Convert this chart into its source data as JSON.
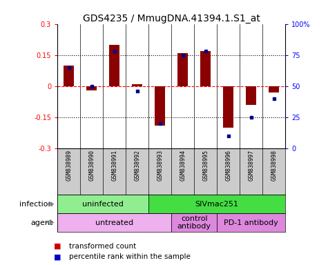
{
  "title": "GDS4235 / MmugDNA.41394.1.S1_at",
  "samples": [
    "GSM838989",
    "GSM838990",
    "GSM838991",
    "GSM838992",
    "GSM838993",
    "GSM838994",
    "GSM838995",
    "GSM838996",
    "GSM838997",
    "GSM838998"
  ],
  "transformed_count": [
    0.1,
    -0.02,
    0.2,
    0.01,
    -0.19,
    0.16,
    0.17,
    -0.2,
    -0.09,
    -0.03
  ],
  "percentile_rank": [
    65,
    50,
    78,
    46,
    20,
    75,
    78,
    10,
    25,
    40
  ],
  "ylim": [
    -0.3,
    0.3
  ],
  "yticks_left": [
    -0.3,
    -0.15,
    0,
    0.15,
    0.3
  ],
  "yticks_right": [
    0,
    25,
    50,
    75,
    100
  ],
  "bar_color": "#8B0000",
  "dot_color": "#00008B",
  "infection_groups": [
    {
      "label": "uninfected",
      "start": 0,
      "end": 4,
      "color": "#90EE90"
    },
    {
      "label": "SIVmac251",
      "start": 4,
      "end": 10,
      "color": "#44DD44"
    }
  ],
  "agent_groups": [
    {
      "label": "untreated",
      "start": 0,
      "end": 5,
      "color": "#EEB0EE"
    },
    {
      "label": "control\nantibody",
      "start": 5,
      "end": 7,
      "color": "#DD88DD"
    },
    {
      "label": "PD-1 antibody",
      "start": 7,
      "end": 10,
      "color": "#DD88DD"
    }
  ],
  "legend_bar_color": "#CC0000",
  "legend_dot_color": "#0000CC",
  "title_fontsize": 10,
  "tick_fontsize": 7,
  "sample_fontsize": 6
}
